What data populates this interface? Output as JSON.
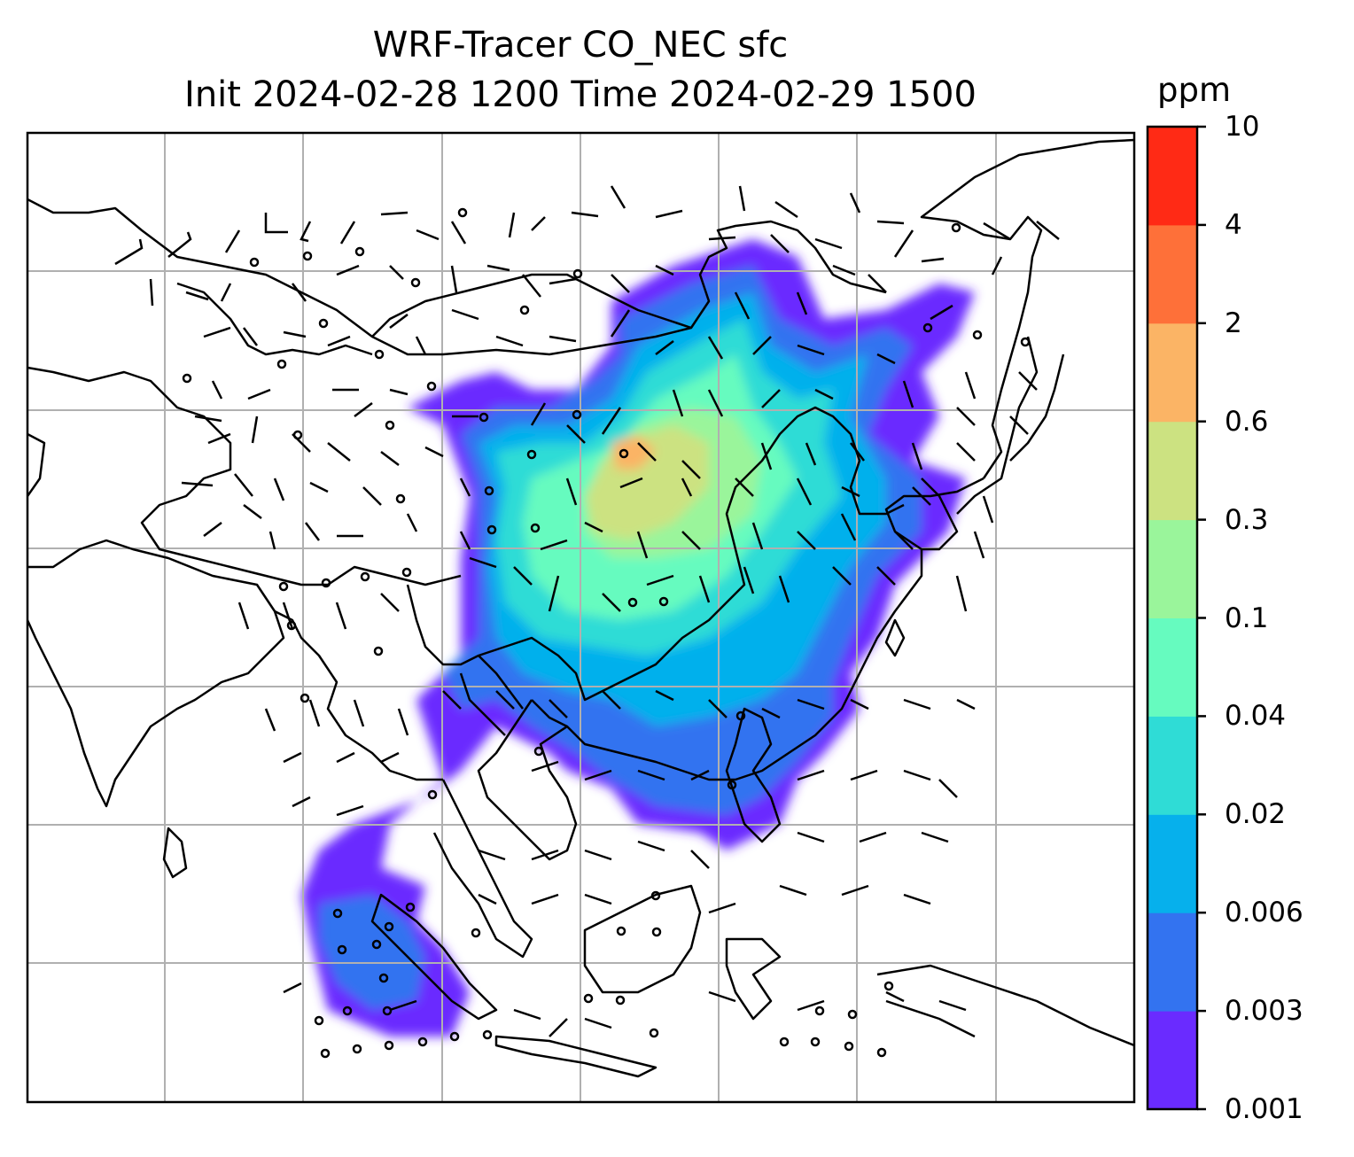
{
  "title": {
    "line1": "WRF-Tracer CO_NEC sfc",
    "line2": "Init 2024-02-28 1200 Time 2024-02-29 1500"
  },
  "colorbar": {
    "unit": "ppm",
    "levels": [
      "0.001",
      "0.003",
      "0.006",
      "0.02",
      "0.04",
      "0.1",
      "0.3",
      "0.6",
      "2",
      "4",
      "10"
    ],
    "colors": [
      "#6a2bff",
      "#3373f0",
      "#06b0ec",
      "#2fdcd6",
      "#66fbbf",
      "#9af59b",
      "#cce281",
      "#fbb465",
      "#fe7039",
      "#ff2a15"
    ]
  },
  "map": {
    "field": "CO_NEC",
    "level": "sfc",
    "gridlines": true,
    "wind_barbs": true,
    "background": "#ffffff",
    "coastline_color": "#000000",
    "grid_color": "#b0b0b0"
  }
}
